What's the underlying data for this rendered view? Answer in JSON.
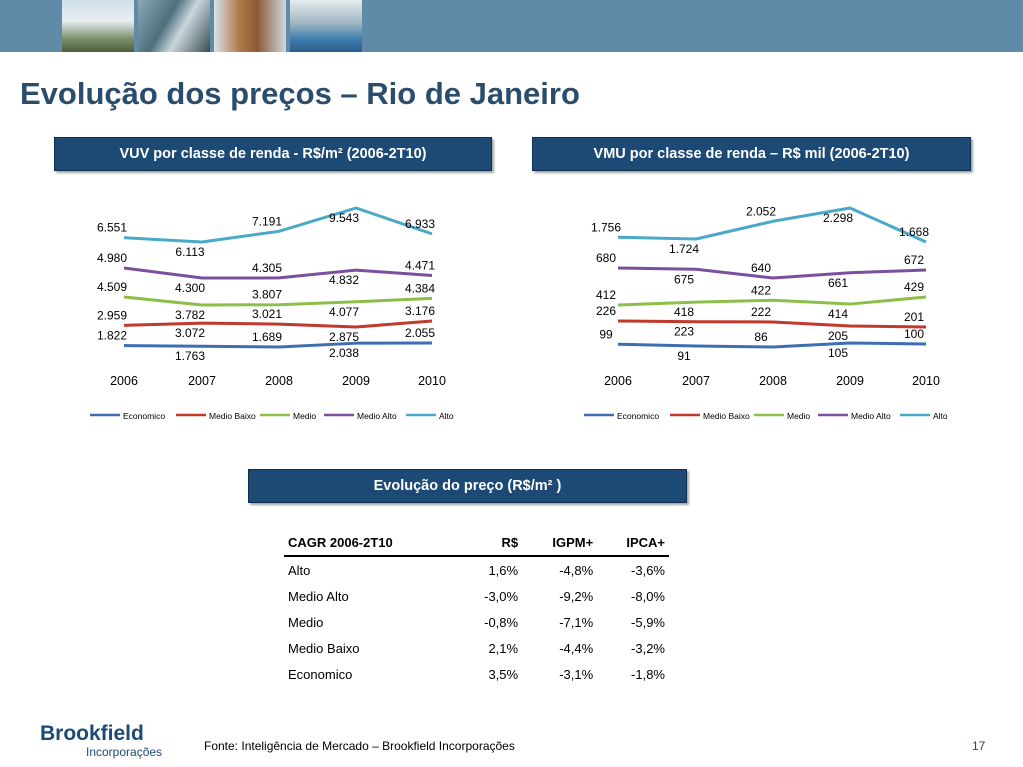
{
  "page": {
    "title": "Evolução dos preços – Rio de Janeiro",
    "source": "Fonte: Inteligência de Mercado – Brookfield Incorporações",
    "page_number": "17",
    "logo": {
      "brand": "Brookfield",
      "sub": "Incorporações"
    },
    "colors": {
      "topbar": "#5f8aa8",
      "title": "#2a4d6e",
      "header_bg": "#1d4a74"
    }
  },
  "chart_data": [
    {
      "type": "line",
      "title": "VUV por classe de renda - R$/m² (2006-2T10)",
      "categories": [
        "2006",
        "2007",
        "2008",
        "2009",
        "2010"
      ],
      "series": [
        {
          "name": "Economico",
          "color": "#3d6eb4",
          "values": [
            1822,
            1763,
            1689,
            2038,
            2055
          ],
          "labels": [
            "1.822",
            "1.763",
            "1.689",
            "2.038",
            "2.055"
          ]
        },
        {
          "name": "Medio Baixo",
          "color": "#c0392b",
          "values": [
            2959,
            3072,
            3021,
            2875,
            3176
          ],
          "labels": [
            "2.959",
            "3.072",
            "3.021",
            "2.875",
            "3.176"
          ]
        },
        {
          "name": "Medio",
          "color": "#8cbf4a",
          "values": [
            4509,
            3782,
            3807,
            4077,
            4384
          ],
          "labels": [
            "4.509",
            "3.782",
            "3.807",
            "4.077",
            "4.384"
          ]
        },
        {
          "name": "Medio Alto",
          "color": "#7b4f9e",
          "values": [
            4980,
            4300,
            4305,
            4832,
            4471
          ],
          "labels": [
            "4.980",
            "4.300",
            "4.305",
            "4.832",
            "4.471"
          ]
        },
        {
          "name": "Alto",
          "color": "#4aa9c8",
          "values": [
            6551,
            6113,
            7191,
            9543,
            6933
          ],
          "labels": [
            "6.551",
            "6.113",
            "7.191",
            "9.543",
            "6.933"
          ]
        }
      ],
      "legend": "bottom",
      "grid": false
    },
    {
      "type": "line",
      "title": "VMU por classe de renda – R$ mil  (2006-2T10)",
      "categories": [
        "2006",
        "2007",
        "2008",
        "2009",
        "2010"
      ],
      "series": [
        {
          "name": "Economico",
          "color": "#3d6eb4",
          "values": [
            99,
            91,
            86,
            105,
            100
          ],
          "labels": [
            "99",
            "91",
            "86",
            "105",
            "100"
          ]
        },
        {
          "name": "Medio Baixo",
          "color": "#c0392b",
          "values": [
            226,
            223,
            222,
            205,
            201
          ],
          "labels": [
            "226",
            "223",
            "222",
            "205",
            "201"
          ]
        },
        {
          "name": "Medio",
          "color": "#8cbf4a",
          "values": [
            412,
            418,
            422,
            414,
            429
          ],
          "labels": [
            "412",
            "418",
            "422",
            "414",
            "429"
          ]
        },
        {
          "name": "Medio Alto",
          "color": "#7b4f9e",
          "values": [
            680,
            675,
            640,
            661,
            672
          ],
          "labels": [
            "680",
            "675",
            "640",
            "661",
            "672"
          ]
        },
        {
          "name": "Alto",
          "color": "#4aa9c8",
          "values": [
            1756,
            1724,
            2052,
            2298,
            1668
          ],
          "labels": [
            "1.756",
            "1.724",
            "2.052",
            "2.298",
            "1.668"
          ]
        }
      ],
      "legend": "bottom",
      "grid": false
    }
  ],
  "table": {
    "title": "Evolução do preço (R$/m² )",
    "columns": [
      "CAGR 2006-2T10",
      "R$",
      "IGPM+",
      "IPCA+"
    ],
    "rows": [
      [
        "Alto",
        "1,6%",
        "-4,8%",
        "-3,6%"
      ],
      [
        "Medio Alto",
        "-3,0%",
        "-9,2%",
        "-8,0%"
      ],
      [
        "Medio",
        "-0,8%",
        "-7,1%",
        "-5,9%"
      ],
      [
        "Medio Baixo",
        "2,1%",
        "-4,4%",
        "-3,2%"
      ],
      [
        "Economico",
        "3,5%",
        "-3,1%",
        "-1,8%"
      ]
    ]
  }
}
